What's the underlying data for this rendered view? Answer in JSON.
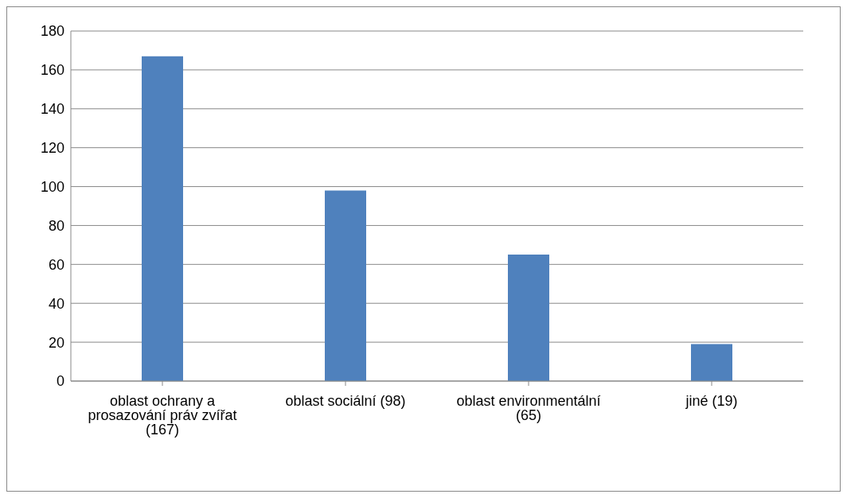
{
  "chart_data": {
    "type": "bar",
    "categories": [
      "oblast ochrany a prosazování práv zvířat (167)",
      "oblast sociální (98)",
      "oblast environmentální (65)",
      "jiné (19)"
    ],
    "values": [
      167,
      98,
      65,
      19
    ],
    "color": "#4f81bd",
    "ylim": [
      0,
      180
    ],
    "yticks": [
      0,
      20,
      40,
      60,
      80,
      100,
      120,
      140,
      160,
      180
    ],
    "grid": "y",
    "legend": false
  }
}
